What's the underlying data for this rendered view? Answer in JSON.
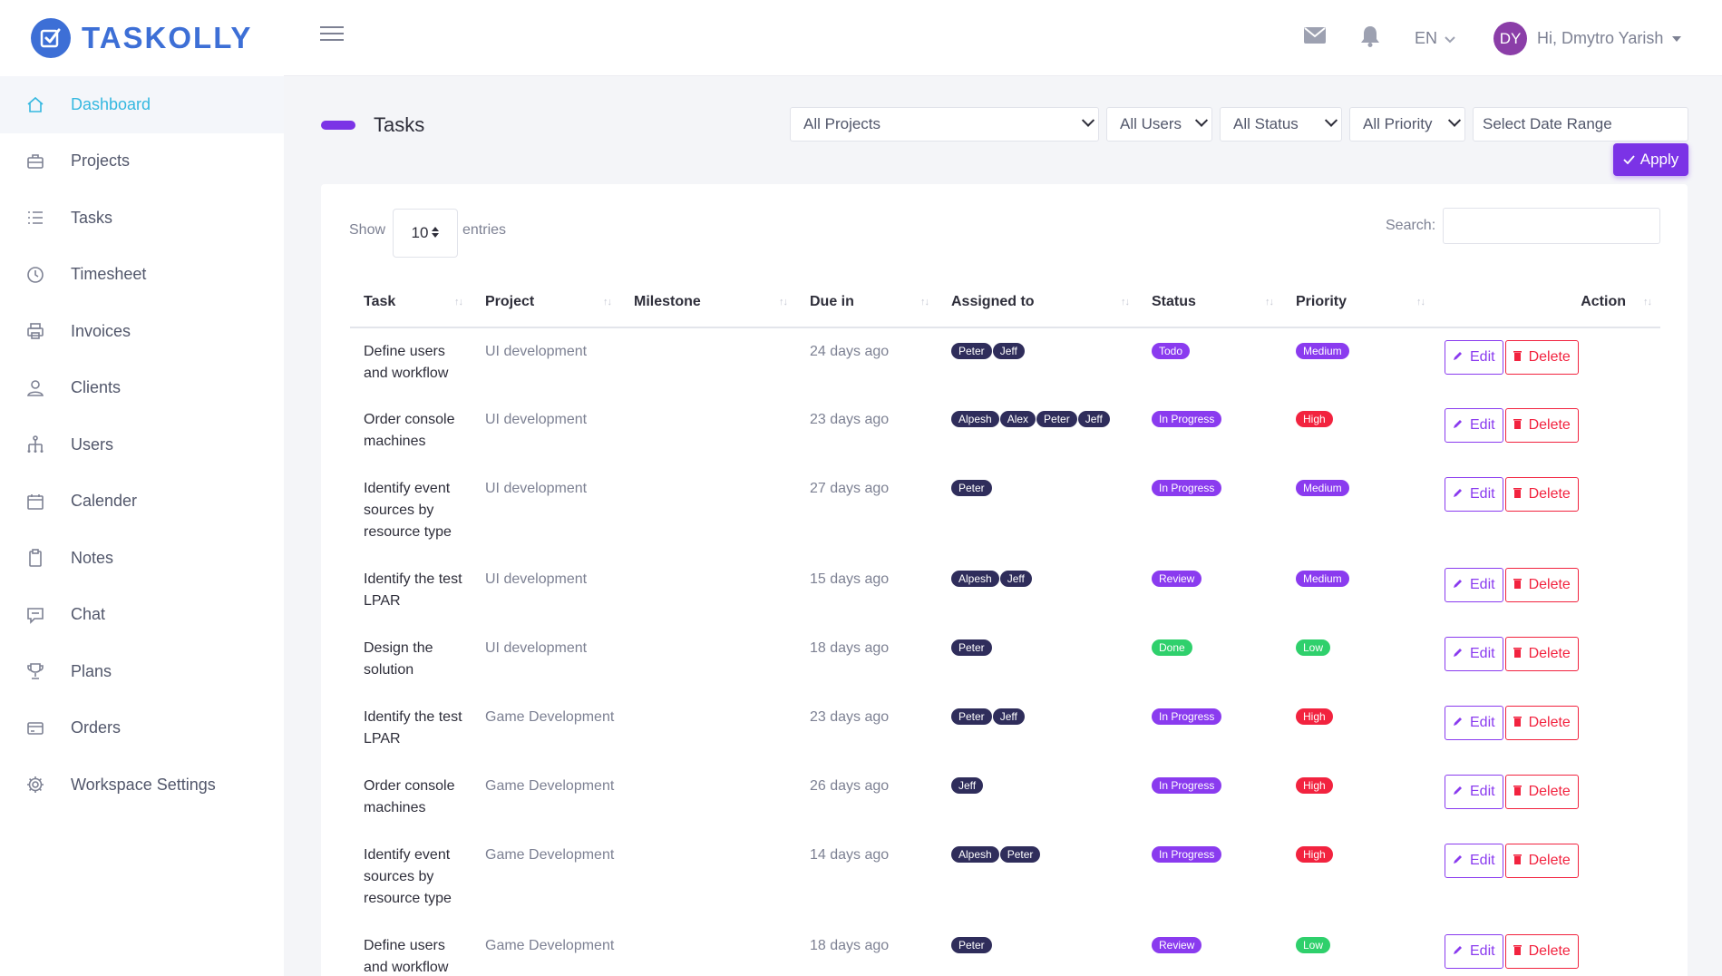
{
  "brand": {
    "name": "TASKOLLY"
  },
  "sidebar": {
    "items": [
      {
        "label": "Dashboard",
        "icon": "home-icon",
        "active": true
      },
      {
        "label": "Projects",
        "icon": "briefcase-icon"
      },
      {
        "label": "Tasks",
        "icon": "list-icon"
      },
      {
        "label": "Timesheet",
        "icon": "clock-icon"
      },
      {
        "label": "Invoices",
        "icon": "printer-icon"
      },
      {
        "label": "Clients",
        "icon": "user-icon"
      },
      {
        "label": "Users",
        "icon": "hierarchy-icon"
      },
      {
        "label": "Calender",
        "icon": "calendar-icon"
      },
      {
        "label": "Notes",
        "icon": "clipboard-icon"
      },
      {
        "label": "Chat",
        "icon": "chat-icon"
      },
      {
        "label": "Plans",
        "icon": "trophy-icon"
      },
      {
        "label": "Orders",
        "icon": "credit-card-icon"
      },
      {
        "label": "Workspace Settings",
        "icon": "gear-icon"
      }
    ]
  },
  "header": {
    "language": "EN",
    "avatar_initials": "DY",
    "greeting": "Hi, Dmytro Yarish"
  },
  "page": {
    "title": "Tasks",
    "filters": {
      "projects": "All Projects",
      "users": "All Users",
      "status": "All Status",
      "priority": "All Priority",
      "date_range": "Select Date Range"
    },
    "apply_label": "Apply"
  },
  "table_controls": {
    "show_label": "Show",
    "page_size": "10",
    "entries_label": "entries",
    "search_label": "Search:"
  },
  "columns": [
    "Task",
    "Project",
    "Milestone",
    "Due in",
    "Assigned to",
    "Status",
    "Priority",
    "Action"
  ],
  "rows": [
    {
      "task": "Define users and workflow",
      "project": "UI development",
      "milestone": "",
      "due": "24 days ago",
      "assigned": [
        "Peter",
        "Jeff"
      ],
      "status": "Todo",
      "priority": "Medium"
    },
    {
      "task": "Order console machines",
      "project": "UI development",
      "milestone": "",
      "due": "23 days ago",
      "assigned": [
        "Alpesh",
        "Alex",
        "Peter",
        "Jeff"
      ],
      "status": "In Progress",
      "priority": "High"
    },
    {
      "task": "Identify event sources by resource type",
      "project": "UI development",
      "milestone": "",
      "due": "27 days ago",
      "assigned": [
        "Peter"
      ],
      "status": "In Progress",
      "priority": "Medium"
    },
    {
      "task": "Identify the test LPAR",
      "project": "UI development",
      "milestone": "",
      "due": "15 days ago",
      "assigned": [
        "Alpesh",
        "Jeff"
      ],
      "status": "Review",
      "priority": "Medium"
    },
    {
      "task": "Design the solution",
      "project": "UI development",
      "milestone": "",
      "due": "18 days ago",
      "assigned": [
        "Peter"
      ],
      "status": "Done",
      "priority": "Low"
    },
    {
      "task": "Identify the test LPAR",
      "project": "Game Development",
      "milestone": "",
      "due": "23 days ago",
      "assigned": [
        "Peter",
        "Jeff"
      ],
      "status": "In Progress",
      "priority": "High"
    },
    {
      "task": "Order console machines",
      "project": "Game Development",
      "milestone": "",
      "due": "26 days ago",
      "assigned": [
        "Jeff"
      ],
      "status": "In Progress",
      "priority": "High"
    },
    {
      "task": "Identify event sources by resource type",
      "project": "Game Development",
      "milestone": "",
      "due": "14 days ago",
      "assigned": [
        "Alpesh",
        "Peter"
      ],
      "status": "In Progress",
      "priority": "High"
    },
    {
      "task": "Define users and workflow",
      "project": "Game Development",
      "milestone": "",
      "due": "18 days ago",
      "assigned": [
        "Peter"
      ],
      "status": "Review",
      "priority": "Low"
    }
  ],
  "actions": {
    "edit_label": "Edit",
    "delete_label": "Delete"
  },
  "colors": {
    "brand": "#3d6fd6",
    "accent": "#7b33e6",
    "active_nav": "#35b8e0",
    "user_badge": "#2f2d5b",
    "purple_badge": "#8a3bef",
    "green_badge": "#2fd06c",
    "red_badge": "#f2233f"
  }
}
